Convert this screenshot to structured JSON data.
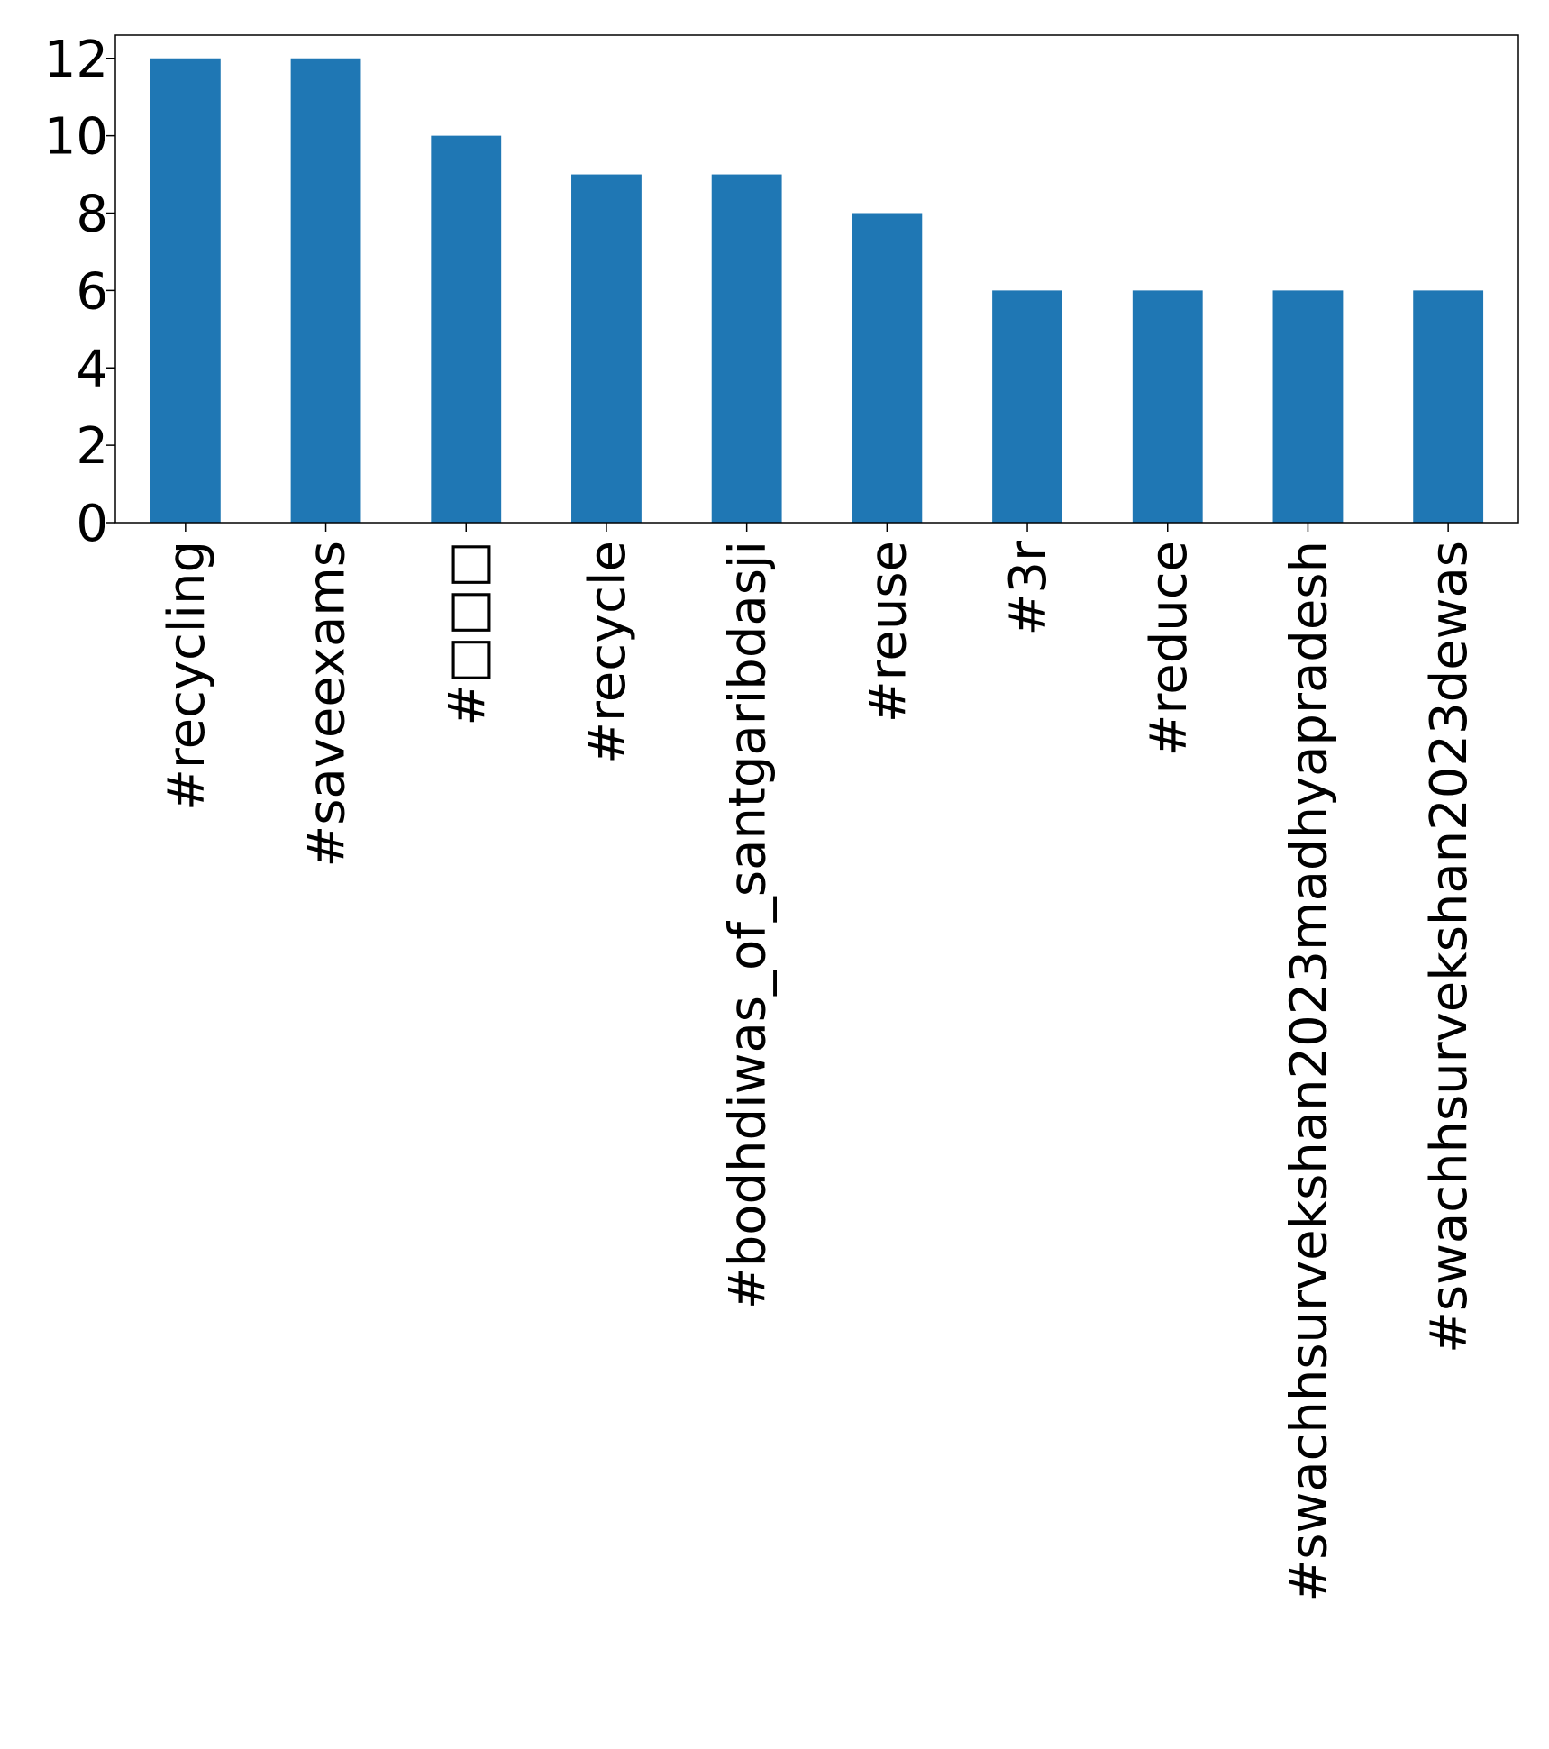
{
  "chart_data": {
    "type": "bar",
    "categories": [
      "#recycling",
      "#saveexams",
      "#□□□",
      "#recycle",
      "#bodhdiwas_of_santgaribdasji",
      "#reuse",
      "#3r",
      "#reduce",
      "#swachhsurvekshan2023madhyapradesh",
      "#swachhsurvekshan2023dewas"
    ],
    "values": [
      12,
      12,
      10,
      9,
      9,
      8,
      6,
      6,
      6,
      6
    ],
    "yticks": [
      0,
      2,
      4,
      6,
      8,
      10,
      12
    ],
    "ylim": [
      0,
      12.6
    ],
    "title": "",
    "xlabel": "",
    "ylabel": "",
    "grid": false,
    "bar_color": "#1f77b4"
  }
}
